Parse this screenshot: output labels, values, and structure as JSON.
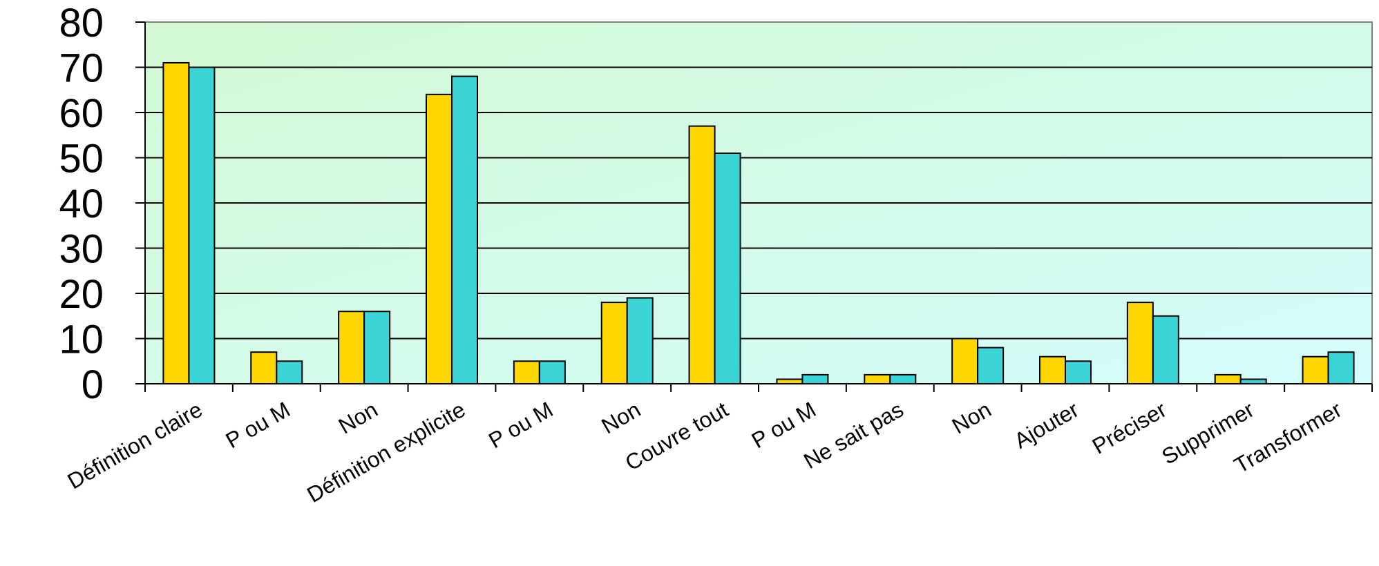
{
  "chart_data": {
    "type": "bar",
    "title": "",
    "xlabel": "",
    "ylabel": "",
    "ylim": [
      0,
      80
    ],
    "yticks": [
      0,
      10,
      20,
      30,
      40,
      50,
      60,
      70,
      80
    ],
    "grid": true,
    "legend": "none",
    "background": "green-to-cyan gradient",
    "categories": [
      "Définition claire",
      "P ou M",
      "Non",
      "Définition explicite",
      "P ou M",
      "Non",
      "Couvre tout",
      "P ou M",
      "Ne sait pas",
      "Non",
      "Ajouter",
      "Préciser",
      "Supprimer",
      "Transformer"
    ],
    "series": [
      {
        "color": "#FFD700",
        "values": [
          71,
          7,
          16,
          64,
          5,
          18,
          57,
          1,
          2,
          10,
          6,
          18,
          2,
          6
        ]
      },
      {
        "color": "#3BD5D8",
        "values": [
          70,
          5,
          16,
          68,
          5,
          19,
          51,
          2,
          2,
          8,
          5,
          15,
          1,
          7
        ]
      }
    ]
  }
}
